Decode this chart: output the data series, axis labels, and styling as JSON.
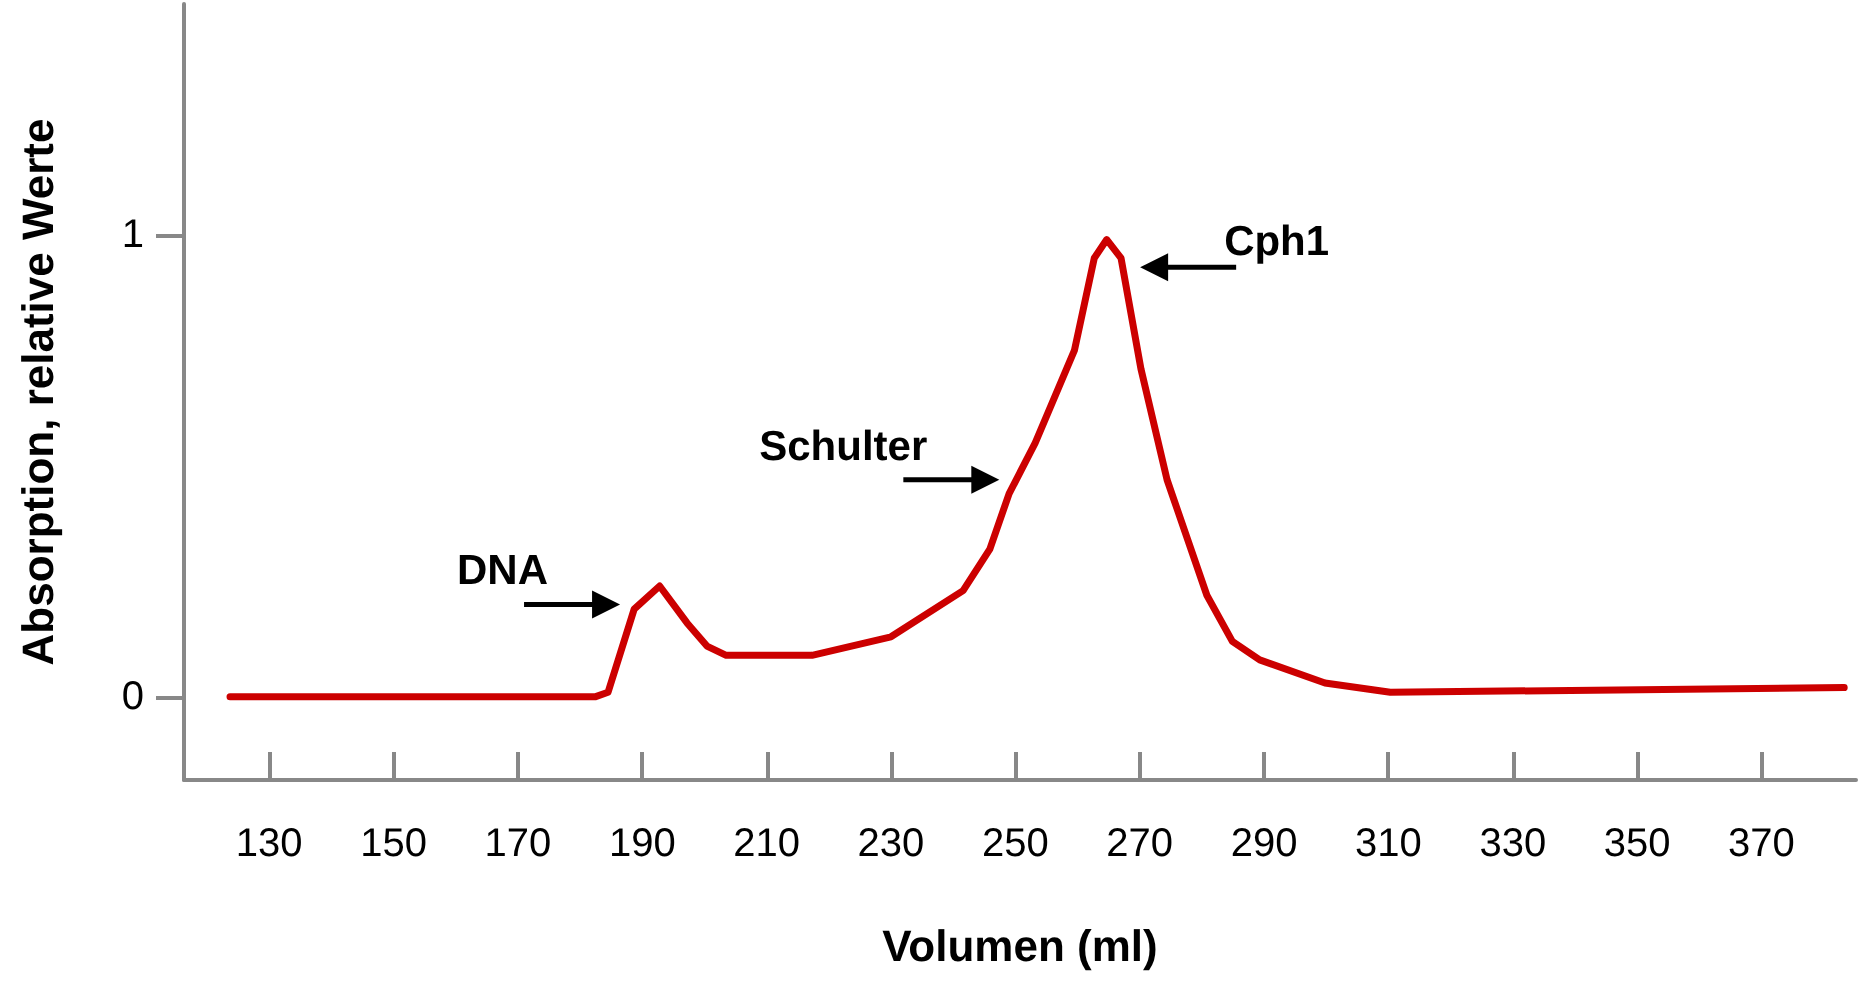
{
  "chart_data": {
    "type": "line",
    "xlabel": "Volumen (ml)",
    "ylabel": "Absorption, relative Werte",
    "x": [
      123.7,
      182.4,
      184.5,
      188.7,
      192.8,
      197.2,
      200.4,
      203.5,
      217.3,
      230,
      241.6,
      245.9,
      249,
      253.2,
      259.5,
      262.7,
      264.7,
      267,
      270.2,
      274.4,
      280.8,
      284.9,
      289.3,
      299.8,
      310.3,
      383.3
    ],
    "series": [
      {
        "color": "#cc0000",
        "values": [
          0,
          0,
          0.01,
          0.19,
          0.24,
          0.16,
          0.11,
          0.09,
          0.09,
          0.13,
          0.23,
          0.32,
          0.44,
          0.55,
          0.75,
          0.95,
          0.99,
          0.95,
          0.71,
          0.47,
          0.22,
          0.12,
          0.08,
          0.03,
          0.01,
          0.02
        ]
      }
    ],
    "xlim": [
      116.3,
      385.2
    ],
    "xticks": [
      130,
      150,
      170,
      190,
      210,
      230,
      250,
      270,
      290,
      310,
      330,
      350,
      370
    ],
    "ylim": [
      -0.18,
      1.5
    ],
    "yticks": [
      0,
      1
    ],
    "grid": false,
    "marker": "none",
    "line_style": "solid",
    "annotations": [
      {
        "text": "DNA",
        "x": 189,
        "y": 0.2
      },
      {
        "text": "Schulter",
        "x": 250,
        "y": 0.47
      },
      {
        "text": "Cph1",
        "x": 267.5,
        "y": 0.93
      }
    ]
  }
}
